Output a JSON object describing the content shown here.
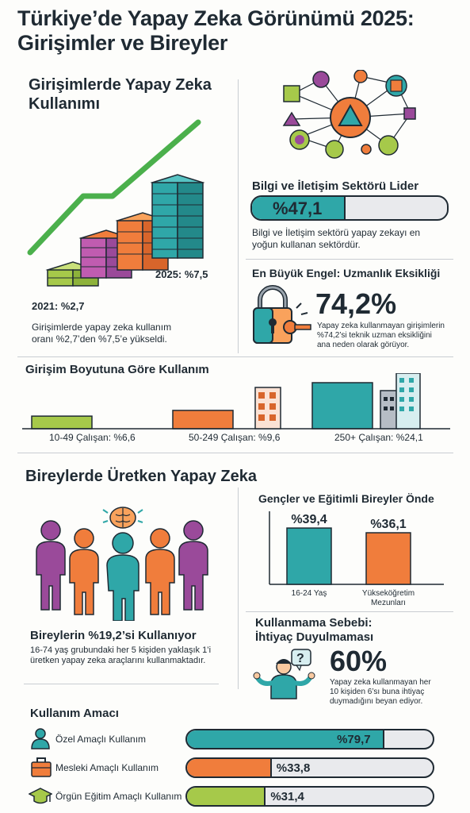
{
  "title_line1": "Türkiye’de Yapay Zeka Görünümü 2025:",
  "title_line2": "Girişimler ve Bireyler",
  "enterprises": {
    "heading_line1": "Girişimlerde Yapay Zeka",
    "heading_line2": "Kullanımı",
    "label_2021": "2021: %2,7",
    "label_2025": "2025: %7,5",
    "desc_line1": "Girişimlerde yapay zeka kullanım",
    "desc_line2": "oranı %2,7’den %7,5’e yükseldi.",
    "value_2021": 2.7,
    "value_2025": 7.5
  },
  "ict": {
    "heading": "Bilgi ve İletişim Sektörü Lider",
    "bar_label": "%47,1",
    "value": 47.1,
    "desc_line1": "Bilgi ve İletişim sektörü yapay zekayı en",
    "desc_line2": "yoğun kullanan sektördür."
  },
  "barrier": {
    "heading": "En Büyük Engel: Uzmanlık Eksikliği",
    "big_value": "74,2%",
    "desc_line1": "Yapay zeka kullanmayan girişimlerin",
    "desc_line2": "%74,2’si teknik uzman eksikliğini",
    "desc_line3": "ana neden olarak görüyor."
  },
  "size": {
    "heading": "Girişim Boyutuna Göre Kullanım",
    "chart_data": {
      "type": "bar",
      "categories": [
        "10-49 Çalışan: %6,6",
        "50-249 Çalışan: %9,6",
        "250+ Çalışan: %24,1"
      ],
      "values": [
        6.6,
        9.6,
        24.1
      ],
      "colors": [
        "#a6c94a",
        "#f07d3c",
        "#2fa7a8"
      ]
    }
  },
  "individuals": {
    "heading": "Bireylerde Üretken Yapay Zeka",
    "stat_heading": "Bireylerin %19,2’si Kullanıyor",
    "desc_line1": "16-74 yaş grubundaki her 5 kişiden yaklaşık 1’i",
    "desc_line2": "üretken yapay zeka araçlarını kullanmaktadır."
  },
  "youth": {
    "heading": "Gençler ve Eğitimli Bireyler Önde",
    "chart_data": {
      "type": "bar",
      "categories": [
        "16-24 Yaş",
        "Yükseköğretim Mezunları"
      ],
      "category_lines": [
        [
          "16-24 Yaş"
        ],
        [
          "Yükseköğretim",
          "Mezunları"
        ]
      ],
      "values": [
        39.4,
        36.1
      ],
      "value_labels": [
        "%39,4",
        "%36,1"
      ],
      "colors": [
        "#2fa7a8",
        "#f07d3c"
      ]
    }
  },
  "nonuse": {
    "heading_line1": "Kullanmama Sebebi:",
    "heading_line2": "İhtiyaç Duyulmaması",
    "big_value": "60%",
    "desc_line1": "Yapay zeka kullanmayan her",
    "desc_line2": "10 kişiden 6’sı buna ihtiyaç",
    "desc_line3": "duymadığını beyan ediyor."
  },
  "purpose": {
    "heading": "Kullanım Amacı",
    "items": [
      {
        "label": "Özel Amaçlı Kullanım",
        "value_label": "%79,7",
        "value": 79.7,
        "color": "#2fa7a8",
        "icon": "person-icon"
      },
      {
        "label": "Mesleki Amaçlı Kullanım",
        "value_label": "%33,8",
        "value": 33.8,
        "color": "#f07d3c",
        "icon": "briefcase-icon"
      },
      {
        "label": "Örgün Eğitim Amaçlı Kullanım",
        "value_label": "%31,4",
        "value": 31.4,
        "color": "#a6c94a",
        "icon": "graduation-cap-icon"
      }
    ]
  }
}
